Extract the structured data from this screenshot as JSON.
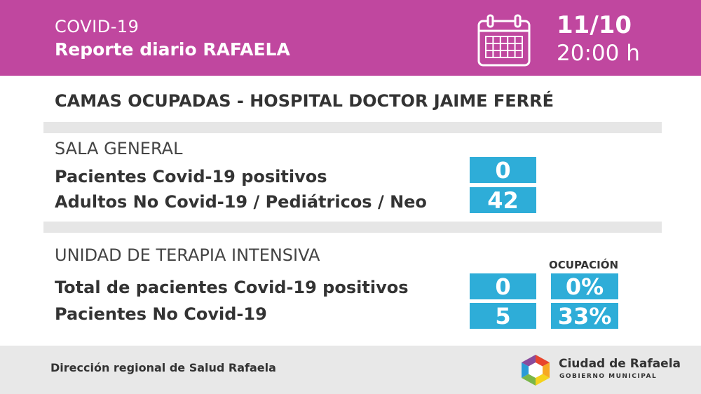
{
  "header": {
    "kicker": "COVID-19",
    "title": "Reporte diario RAFAELA",
    "date": "11/10",
    "time": "20:00 h",
    "icon": "calendar-icon"
  },
  "main_title": "CAMAS OCUPADAS - HOSPITAL DOCTOR JAIME FERRÉ",
  "sala_general": {
    "title": "SALA GENERAL",
    "rows": [
      {
        "label": "Pacientes Covid-19 positivos",
        "value": "0"
      },
      {
        "label": "Adultos No Covid-19 / Pediátricos / Neo",
        "value": "42"
      }
    ]
  },
  "uti": {
    "title": "UNIDAD DE TERAPIA INTENSIVA",
    "occupancy_label": "OCUPACIÓN",
    "rows": [
      {
        "label": "Total de pacientes Covid-19 positivos",
        "value": "0",
        "occupancy": "0%"
      },
      {
        "label": "Pacientes No Covid-19",
        "value": "5",
        "occupancy": "33%"
      }
    ]
  },
  "footer": {
    "text": "Dirección regional de Salud Rafaela",
    "logo_name": "Ciudad de Rafaela",
    "logo_sub": "GOBIERNO MUNICIPAL"
  },
  "colors": {
    "header_bg": "#c0479f",
    "box_bg": "#2eadd8",
    "separator": "#e6e6e6",
    "footer_bg": "#e8e8e8"
  }
}
